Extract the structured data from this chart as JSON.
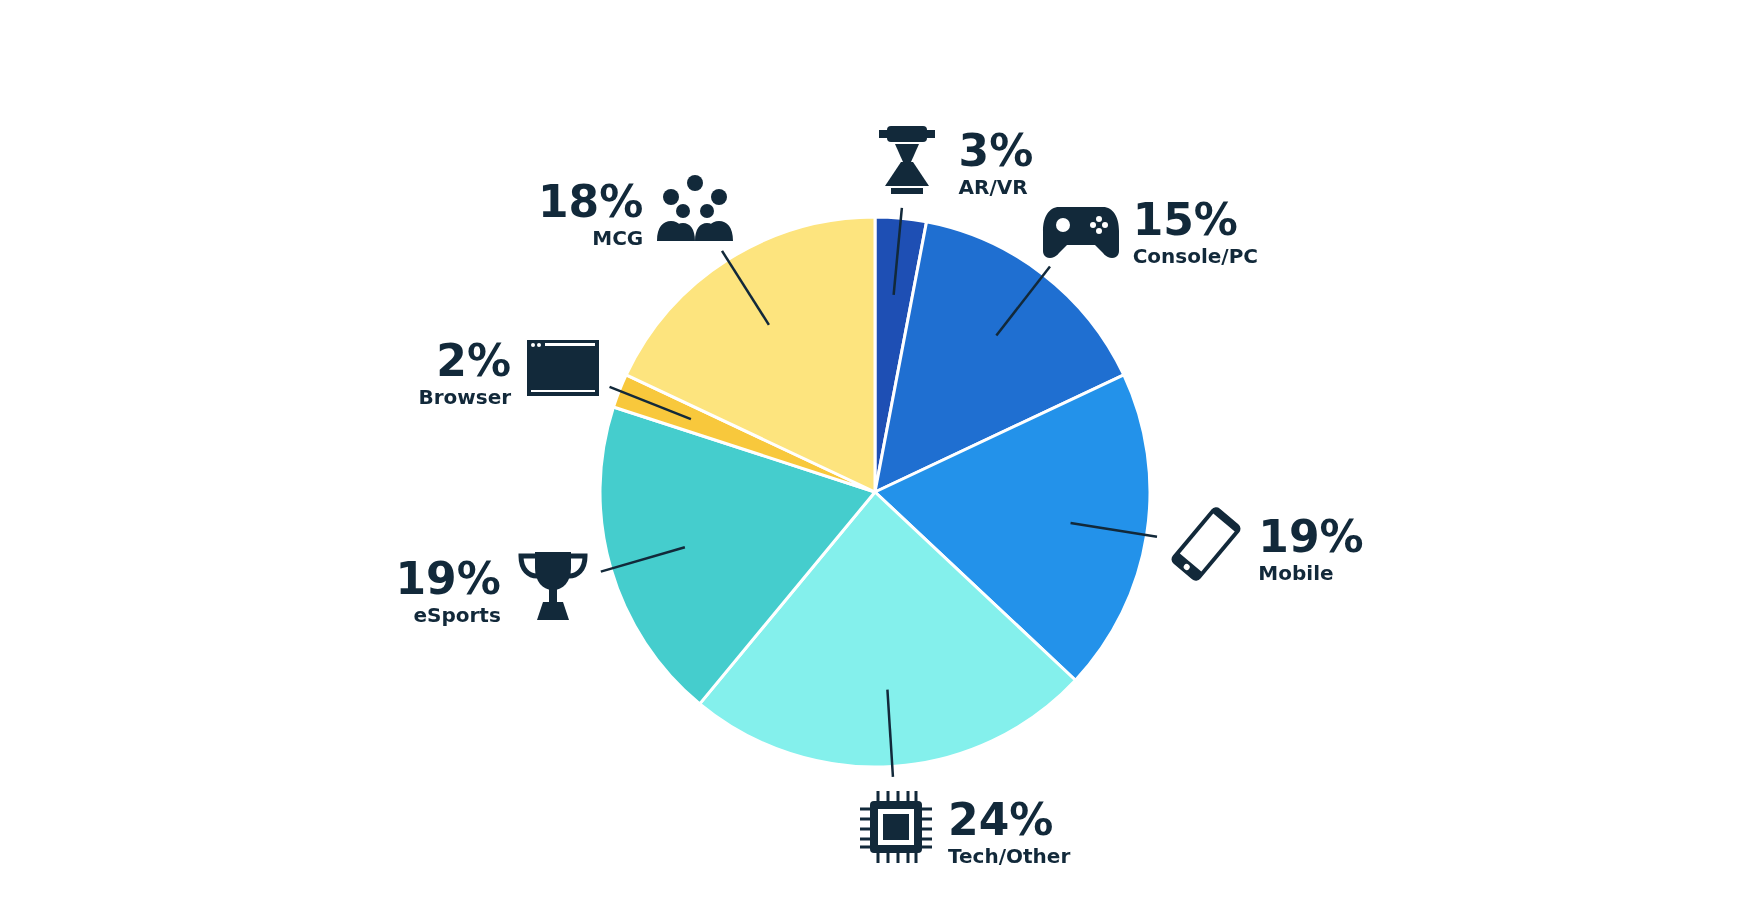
{
  "chart_data": {
    "type": "pie",
    "categories": [
      "AR/VR",
      "Console/PC",
      "Mobile",
      "Tech/Other",
      "eSports",
      "Browser",
      "MCG"
    ],
    "values": [
      3,
      15,
      19,
      24,
      19,
      2,
      18
    ],
    "value_labels": [
      "3%",
      "15%",
      "19%",
      "24%",
      "19%",
      "2%",
      "18%"
    ],
    "colors": [
      "#1e4fb4",
      "#1f6fd1",
      "#2392ea",
      "#84f0ec",
      "#45cdcd",
      "#f8c83c",
      "#fde47e"
    ],
    "legend": false
  }
}
